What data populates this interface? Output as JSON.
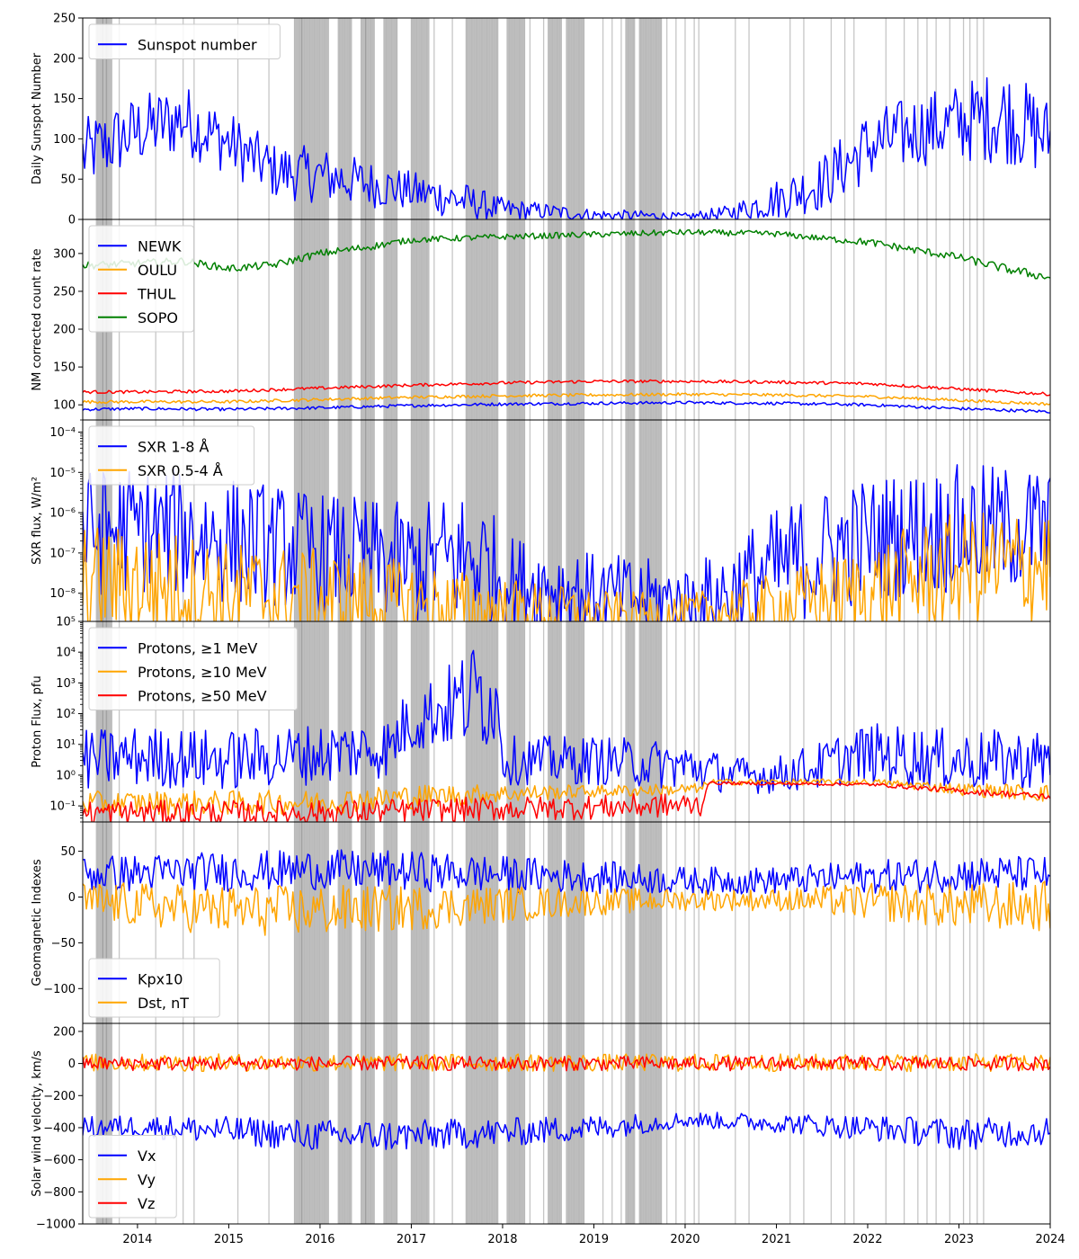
{
  "x_axis": {
    "range": [
      2013.4,
      2024.0
    ],
    "ticks": [
      "2014",
      "2015",
      "2016",
      "2017",
      "2018",
      "2019",
      "2020",
      "2021",
      "2022",
      "2023",
      "2024"
    ]
  },
  "shading": {
    "color": "#808080",
    "note": "vertical grey bands marking event dates",
    "dense_bands": [
      [
        2013.55,
        2013.72
      ],
      [
        2015.72,
        2016.1
      ],
      [
        2016.2,
        2016.35
      ],
      [
        2016.45,
        2016.6
      ],
      [
        2016.7,
        2016.85
      ],
      [
        2017.0,
        2017.2
      ],
      [
        2017.6,
        2017.95
      ],
      [
        2018.05,
        2018.25
      ],
      [
        2018.5,
        2018.65
      ],
      [
        2018.7,
        2018.9
      ],
      [
        2019.35,
        2019.45
      ],
      [
        2019.5,
        2019.75
      ]
    ],
    "lines": [
      2013.62,
      2013.66,
      2013.8,
      2014.2,
      2014.5,
      2014.62,
      2015.1,
      2015.44,
      2015.8,
      2016.5,
      2017.25,
      2017.45,
      2018.3,
      2018.45,
      2019.1,
      2019.2,
      2019.3,
      2019.8,
      2019.9,
      2020.0,
      2020.1,
      2020.15,
      2020.55,
      2020.7,
      2021.15,
      2021.3,
      2021.6,
      2021.75,
      2021.85,
      2022.2,
      2022.4,
      2022.55,
      2022.65,
      2022.75,
      2022.9,
      2023.05,
      2023.12,
      2023.2,
      2023.27
    ]
  },
  "chart_data": [
    {
      "type": "line",
      "ylabel": "Daily Sunspot Number",
      "ylim": [
        0,
        250
      ],
      "yticks": [
        0,
        50,
        100,
        150,
        200,
        250
      ],
      "ytick_labels": [
        "0",
        "50",
        "100",
        "150",
        "200",
        "250"
      ],
      "legend_position": "upper-left",
      "series": [
        {
          "name": "Sunspot number",
          "color": "#0000ff",
          "x": [
            2013.4,
            2014.0,
            2014.5,
            2015.0,
            2015.5,
            2016.0,
            2016.5,
            2017.0,
            2017.5,
            2018.0,
            2018.5,
            2019.0,
            2019.5,
            2020.0,
            2020.5,
            2021.0,
            2021.5,
            2022.0,
            2022.5,
            2023.0,
            2023.5,
            2024.0
          ],
          "values": [
            80,
            110,
            125,
            95,
            60,
            55,
            45,
            35,
            25,
            12,
            10,
            5,
            5,
            3,
            8,
            25,
            45,
            90,
            110,
            120,
            130,
            100
          ],
          "spread": [
            45,
            45,
            45,
            40,
            35,
            35,
            30,
            25,
            25,
            15,
            10,
            8,
            6,
            5,
            10,
            25,
            35,
            45,
            45,
            50,
            60,
            50
          ]
        }
      ]
    },
    {
      "type": "line",
      "ylabel": "NM corrected count rate",
      "ylim": [
        80,
        345
      ],
      "yticks": [
        100,
        150,
        200,
        250,
        300
      ],
      "ytick_labels": [
        "100",
        "150",
        "200",
        "250",
        "300"
      ],
      "legend_position": "upper-left",
      "series": [
        {
          "name": "NEWK",
          "color": "#0000ff",
          "x": [
            2013.4,
            2014.0,
            2015.0,
            2016.0,
            2017.0,
            2018.0,
            2019.0,
            2020.0,
            2021.0,
            2022.0,
            2023.0,
            2024.0
          ],
          "values": [
            94,
            95,
            94,
            96,
            99,
            101,
            102,
            103,
            102,
            100,
            95,
            91
          ],
          "spread": [
            2,
            2,
            2,
            2,
            2,
            2,
            2,
            2,
            2,
            2,
            2,
            2
          ]
        },
        {
          "name": "OULU",
          "color": "#ffa500",
          "x": [
            2013.4,
            2014.0,
            2015.0,
            2016.0,
            2017.0,
            2018.0,
            2019.0,
            2020.0,
            2021.0,
            2022.0,
            2023.0,
            2024.0
          ],
          "values": [
            104,
            104,
            104,
            107,
            110,
            112,
            113,
            114,
            113,
            111,
            106,
            101
          ],
          "spread": [
            2,
            2,
            2,
            2,
            2,
            2,
            2,
            2,
            2,
            2,
            2,
            2
          ]
        },
        {
          "name": "THUL",
          "color": "#ff0000",
          "x": [
            2013.4,
            2014.0,
            2015.0,
            2016.0,
            2017.0,
            2018.0,
            2019.0,
            2020.0,
            2021.0,
            2022.0,
            2023.0,
            2024.0
          ],
          "values": [
            117,
            117,
            118,
            122,
            126,
            129,
            131,
            131,
            130,
            128,
            121,
            114
          ],
          "spread": [
            2,
            2,
            2,
            2,
            2,
            2,
            2,
            2,
            2,
            2,
            2,
            2
          ]
        },
        {
          "name": "SOPO",
          "color": "#008000",
          "x": [
            2013.4,
            2014.0,
            2014.5,
            2015.0,
            2015.5,
            2016.0,
            2016.5,
            2017.0,
            2017.5,
            2018.0,
            2019.0,
            2020.0,
            2021.0,
            2021.5,
            2022.0,
            2022.5,
            2023.0,
            2023.5,
            2024.0
          ],
          "values": [
            284,
            287,
            290,
            280,
            285,
            300,
            308,
            318,
            320,
            322,
            325,
            328,
            326,
            320,
            315,
            305,
            295,
            280,
            268
          ],
          "spread": [
            5,
            5,
            5,
            5,
            5,
            5,
            5,
            4,
            4,
            4,
            4,
            4,
            4,
            4,
            5,
            5,
            5,
            6,
            6
          ]
        }
      ]
    },
    {
      "type": "line",
      "ylabel": "SXR flux, W/m²",
      "yscale": "log",
      "ylim": [
        2e-09,
        0.0002
      ],
      "yticks": [
        1e-08,
        1e-07,
        1e-06,
        1e-05,
        0.0001
      ],
      "ytick_labels": [
        "10⁻⁸",
        "10⁻⁷",
        "10⁻⁶",
        "10⁻⁵",
        "10⁻⁴"
      ],
      "legend_position": "upper-left",
      "series": [
        {
          "name": "SXR 1-8 Å",
          "color": "#0000ff",
          "x": [
            2013.4,
            2014.0,
            2015.0,
            2016.0,
            2017.0,
            2017.7,
            2018.0,
            2019.0,
            2019.5,
            2020.0,
            2020.5,
            2021.0,
            2021.5,
            2022.0,
            2023.0,
            2024.0
          ],
          "values": [
            3e-07,
            4e-07,
            2e-07,
            1e-07,
            5e-08,
            8e-08,
            2e-08,
            1e-08,
            8e-09,
            6e-09,
            1e-08,
            4e-08,
            1e-07,
            2e-07,
            4e-07,
            4e-07
          ],
          "spread_decades": [
            1.6,
            1.6,
            1.6,
            1.5,
            1.5,
            1.8,
            1.2,
            1.0,
            1.0,
            0.9,
            1.2,
            1.5,
            1.6,
            1.6,
            1.6,
            1.6
          ]
        },
        {
          "name": "SXR 0.5-4 Å",
          "color": "#ffa500",
          "x": [
            2013.4,
            2014.0,
            2015.0,
            2016.0,
            2017.0,
            2018.0,
            2019.0,
            2020.0,
            2021.0,
            2022.0,
            2022.5,
            2023.0,
            2024.0
          ],
          "values": [
            2e-08,
            2e-08,
            1e-08,
            8e-09,
            5e-09,
            4e-09,
            3e-09,
            3e-09,
            5e-09,
            1e-08,
            2e-08,
            4e-08,
            5e-08
          ],
          "spread_decades": [
            1.4,
            1.4,
            1.3,
            1.2,
            1.1,
            0.8,
            0.6,
            0.5,
            0.8,
            1.2,
            1.4,
            1.4,
            1.5
          ]
        }
      ]
    },
    {
      "type": "line",
      "ylabel": "Proton Flux, pfu",
      "yscale": "log",
      "ylim": [
        0.03,
        100000.0
      ],
      "yticks": [
        0.1,
        1,
        10,
        100,
        1000,
        10000,
        100000
      ],
      "ytick_labels": [
        "10⁻¹",
        "10⁰",
        "10¹",
        "10²",
        "10³",
        "10⁴",
        "10⁵"
      ],
      "legend_position": "upper-left",
      "series": [
        {
          "name": "Protons, ≥1 MeV",
          "color": "#0000ff",
          "x": [
            2013.4,
            2014.0,
            2015.0,
            2016.0,
            2016.8,
            2017.2,
            2017.5,
            2017.8,
            2018.0,
            2019.0,
            2020.0,
            2020.5,
            2021.0,
            2021.5,
            2022.0,
            2023.0,
            2024.0
          ],
          "values": [
            3,
            4,
            3,
            5,
            8,
            100,
            200,
            500,
            3,
            3,
            2,
            1,
            1,
            2,
            5,
            3,
            3
          ],
          "spread_decades": [
            1.0,
            1.0,
            1.0,
            1.0,
            1.0,
            1.2,
            1.5,
            2.0,
            0.8,
            0.8,
            0.8,
            0.6,
            0.6,
            0.8,
            1.0,
            1.0,
            1.0
          ]
        },
        {
          "name": "Protons, ≥10 MeV",
          "color": "#ffa500",
          "x": [
            2013.4,
            2016.0,
            2017.0,
            2018.0,
            2019.0,
            2020.2,
            2020.25,
            2022.0,
            2023.0,
            2024.0
          ],
          "values": [
            0.12,
            0.13,
            0.2,
            0.25,
            0.3,
            0.35,
            0.6,
            0.6,
            0.35,
            0.25
          ],
          "spread_decades": [
            0.4,
            0.4,
            0.4,
            0.3,
            0.2,
            0.2,
            0.1,
            0.1,
            0.2,
            0.3
          ]
        },
        {
          "name": "Protons, ≥50 MeV",
          "color": "#ff0000",
          "x": [
            2013.4,
            2016.0,
            2017.0,
            2018.0,
            2019.0,
            2020.2,
            2020.25,
            2022.0,
            2023.0,
            2024.0
          ],
          "values": [
            0.06,
            0.06,
            0.07,
            0.08,
            0.09,
            0.11,
            0.55,
            0.5,
            0.3,
            0.2
          ],
          "spread_decades": [
            0.4,
            0.4,
            0.4,
            0.4,
            0.4,
            0.4,
            0.05,
            0.05,
            0.1,
            0.1
          ]
        }
      ]
    },
    {
      "type": "line",
      "ylabel": "Geomagnetic Indexes",
      "ylim": [
        -138,
        82
      ],
      "yticks": [
        -100,
        -50,
        0,
        50
      ],
      "ytick_labels": [
        "−100",
        "−50",
        "0",
        "50"
      ],
      "legend_position": "lower-left",
      "series": [
        {
          "name": "Kpx10",
          "color": "#0000ff",
          "x": [
            2013.4,
            2015.0,
            2016.0,
            2017.0,
            2018.0,
            2019.0,
            2020.0,
            2021.0,
            2022.0,
            2023.0,
            2024.0
          ],
          "values": [
            25,
            28,
            30,
            28,
            25,
            22,
            18,
            18,
            22,
            25,
            25
          ],
          "spread": [
            20,
            22,
            22,
            22,
            20,
            18,
            15,
            15,
            18,
            20,
            20
          ]
        },
        {
          "name": "Dst, nT",
          "color": "#ffa500",
          "x": [
            2013.4,
            2015.0,
            2016.0,
            2017.0,
            2018.0,
            2019.0,
            2020.0,
            2021.0,
            2022.0,
            2023.0,
            2024.0
          ],
          "values": [
            -5,
            -15,
            -15,
            -12,
            -8,
            -5,
            -3,
            -3,
            -5,
            -10,
            -10
          ],
          "spread": [
            22,
            28,
            28,
            25,
            20,
            15,
            12,
            12,
            20,
            25,
            28
          ]
        }
      ]
    },
    {
      "type": "line",
      "ylabel": "Solar wind velocity, km/s",
      "ylim": [
        -1000,
        250
      ],
      "yticks": [
        -1000,
        -800,
        -600,
        -400,
        -200,
        0,
        200
      ],
      "ytick_labels": [
        "−1000",
        "−800",
        "−600",
        "−400",
        "−200",
        "0",
        "200"
      ],
      "legend_position": "lower-left",
      "series": [
        {
          "name": "Vx",
          "color": "#0000ff",
          "x": [
            2013.4,
            2014.0,
            2015.0,
            2016.0,
            2017.0,
            2018.0,
            2019.0,
            2020.0,
            2021.0,
            2022.0,
            2023.0,
            2024.0
          ],
          "values": [
            -400,
            -390,
            -420,
            -450,
            -450,
            -430,
            -400,
            -350,
            -370,
            -400,
            -440,
            -420
          ],
          "spread": [
            70,
            70,
            90,
            100,
            100,
            90,
            80,
            50,
            60,
            80,
            100,
            90
          ]
        },
        {
          "name": "Vy",
          "color": "#ffa500",
          "x": [
            2013.4,
            2024.0
          ],
          "values": [
            5,
            5
          ],
          "spread": [
            55,
            55
          ]
        },
        {
          "name": "Vz",
          "color": "#ff0000",
          "x": [
            2013.4,
            2024.0
          ],
          "values": [
            0,
            0
          ],
          "spread": [
            45,
            45
          ]
        }
      ]
    }
  ]
}
